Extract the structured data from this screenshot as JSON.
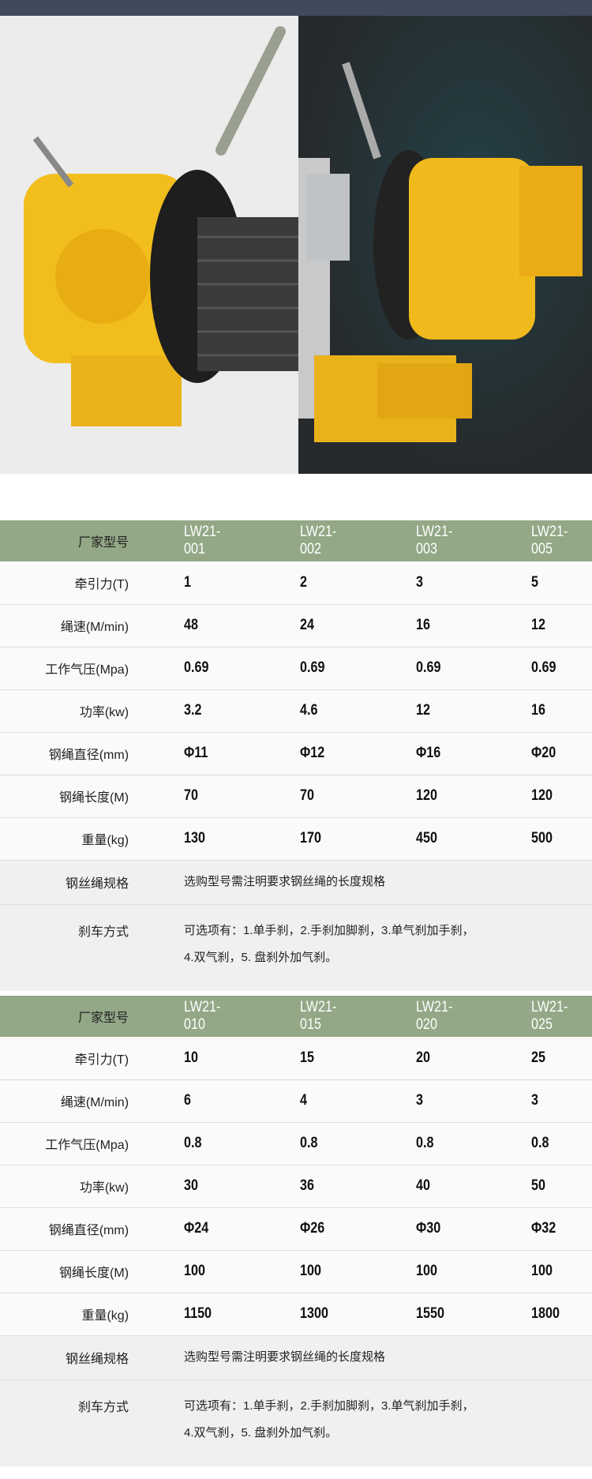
{
  "colors": {
    "header_bg": "#92a886",
    "topbar": "#404a5b",
    "row_bg": "#fafafa",
    "note_bg": "#f0f0f0"
  },
  "images": {
    "left": "yellow air winch with hand lever",
    "right": "yellow air winch with pneumatic brake cylinder"
  },
  "tables": [
    {
      "header": {
        "label": "厂家型号",
        "models": [
          "LW21-001",
          "LW21-002",
          "LW21-003",
          "LW21-005"
        ]
      },
      "rows": [
        {
          "label": "牵引力(T)",
          "values": [
            "1",
            "2",
            "3",
            "5"
          ]
        },
        {
          "label": "绳速(M/min)",
          "values": [
            "48",
            "24",
            "16",
            "12"
          ]
        },
        {
          "label": "工作气压(Mpa)",
          "values": [
            "0.69",
            "0.69",
            "0.69",
            "0.69"
          ]
        },
        {
          "label": "功率(kw)",
          "values": [
            "3.2",
            "4.6",
            "12",
            "16"
          ]
        },
        {
          "label": "钢绳直径(mm)",
          "values": [
            "Φ11",
            "Φ12",
            "Φ16",
            "Φ20"
          ]
        },
        {
          "label": "钢绳长度(M)",
          "values": [
            "70",
            "70",
            "120",
            "120"
          ]
        },
        {
          "label": "重量(kg)",
          "values": [
            "130",
            "170",
            "450",
            "500"
          ]
        }
      ],
      "rope_spec": {
        "label": "钢丝绳规格",
        "text": "选购型号需注明要求钢丝绳的长度规格"
      },
      "brake": {
        "label": "刹车方式",
        "line1": "可选项有：1.单手刹，2.手刹加脚刹，3.单气刹加手刹，",
        "line2": "4.双气刹，5. 盘刹外加气刹。"
      }
    },
    {
      "header": {
        "label": "厂家型号",
        "models": [
          "LW21-010",
          "LW21-015",
          "LW21-020",
          "LW21-025"
        ]
      },
      "rows": [
        {
          "label": "牵引力(T)",
          "values": [
            "10",
            "15",
            "20",
            "25"
          ]
        },
        {
          "label": "绳速(M/min)",
          "values": [
            "6",
            "4",
            "3",
            "3"
          ]
        },
        {
          "label": "工作气压(Mpa)",
          "values": [
            "0.8",
            "0.8",
            "0.8",
            "0.8"
          ]
        },
        {
          "label": "功率(kw)",
          "values": [
            "30",
            "36",
            "40",
            "50"
          ]
        },
        {
          "label": "钢绳直径(mm)",
          "values": [
            "Φ24",
            "Φ26",
            "Φ30",
            "Φ32"
          ]
        },
        {
          "label": "钢绳长度(M)",
          "values": [
            "100",
            "100",
            "100",
            "100"
          ]
        },
        {
          "label": "重量(kg)",
          "values": [
            "1150",
            "1300",
            "1550",
            "1800"
          ]
        }
      ],
      "rope_spec": {
        "label": "钢丝绳规格",
        "text": "选购型号需注明要求钢丝绳的长度规格"
      },
      "brake": {
        "label": "刹车方式",
        "line1": "可选项有：1.单手刹，2.手刹加脚刹，3.单气刹加手刹，",
        "line2": "4.双气刹，5. 盘刹外加气刹。"
      }
    }
  ]
}
